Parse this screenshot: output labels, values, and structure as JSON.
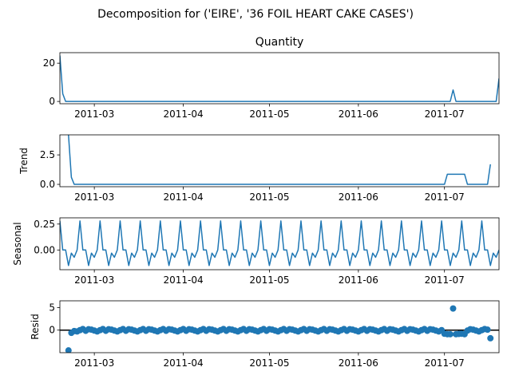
{
  "suptitle": "Decomposition for ('EIRE', '36 FOIL HEART CAKE CASES')",
  "chart_data": [
    {
      "type": "line",
      "key": "quantity",
      "title": "Quantity",
      "ylabel": "",
      "x_start": "2011-02-17",
      "x_end": "2011-07-20",
      "ylim": [
        -1.2,
        25.5
      ],
      "yticks": [
        0,
        20
      ],
      "xticks": [
        "2011-03",
        "2011-04",
        "2011-05",
        "2011-06",
        "2011-07"
      ],
      "points": [
        [
          "2011-02-17",
          24
        ],
        [
          "2011-02-18",
          4
        ],
        [
          "2011-02-19",
          0
        ],
        [
          "2011-07-03",
          0
        ],
        [
          "2011-07-04",
          6
        ],
        [
          "2011-07-05",
          0
        ],
        [
          "2011-07-19",
          0
        ],
        [
          "2011-07-20",
          12
        ]
      ]
    },
    {
      "type": "line",
      "key": "trend",
      "title": "",
      "ylabel": "Trend",
      "x_start": "2011-02-17",
      "x_end": "2011-07-20",
      "ylim": [
        -0.2,
        4.2
      ],
      "yticks": [
        0.0,
        2.5
      ],
      "xticks": [
        "2011-03",
        "2011-04",
        "2011-05",
        "2011-06",
        "2011-07"
      ],
      "points": [
        [
          "2011-02-20",
          4.2
        ],
        [
          "2011-02-21",
          0.6
        ],
        [
          "2011-02-22",
          0
        ],
        [
          "2011-07-01",
          0
        ],
        [
          "2011-07-02",
          0.86
        ],
        [
          "2011-07-08",
          0.86
        ],
        [
          "2011-07-09",
          0
        ],
        [
          "2011-07-16",
          0
        ],
        [
          "2011-07-17",
          1.7
        ]
      ]
    },
    {
      "type": "line",
      "key": "seasonal",
      "title": "",
      "ylabel": "Seasonal",
      "x_start": "2011-02-17",
      "x_end": "2011-07-20",
      "ylim": [
        -0.19,
        0.31
      ],
      "yticks": [
        0.0,
        0.25
      ],
      "xticks": [
        "2011-03",
        "2011-04",
        "2011-05",
        "2011-06",
        "2011-07"
      ],
      "start": "2011-02-17",
      "pattern": [
        0.28,
        0.0,
        0.0,
        -0.15,
        -0.03,
        -0.07,
        0.0
      ]
    },
    {
      "type": "scatter",
      "key": "resid",
      "title": "",
      "ylabel": "Resid",
      "x_start": "2011-02-17",
      "x_end": "2011-07-20",
      "ylim": [
        -5,
        6.5
      ],
      "yticks": [
        0,
        5
      ],
      "xticks": [
        "2011-03",
        "2011-04",
        "2011-05",
        "2011-06",
        "2011-07"
      ],
      "start": "2011-02-20",
      "end": "2011-07-17",
      "base_pattern": [
        0.2,
        0.1,
        -0.1,
        -0.3,
        0.0,
        0.25,
        -0.15
      ],
      "overrides": [
        [
          "2011-02-20",
          -4.5
        ],
        [
          "2011-02-21",
          -0.6
        ],
        [
          "2011-02-22",
          -0.2
        ],
        [
          "2011-07-01",
          -0.8
        ],
        [
          "2011-07-02",
          -0.9
        ],
        [
          "2011-07-03",
          -0.9
        ],
        [
          "2011-07-04",
          4.8
        ],
        [
          "2011-07-05",
          -0.9
        ],
        [
          "2011-07-06",
          -0.85
        ],
        [
          "2011-07-07",
          -0.8
        ],
        [
          "2011-07-08",
          -0.9
        ],
        [
          "2011-07-09",
          -0.1
        ],
        [
          "2011-07-16",
          0.1
        ],
        [
          "2011-07-17",
          -1.8
        ]
      ]
    }
  ]
}
